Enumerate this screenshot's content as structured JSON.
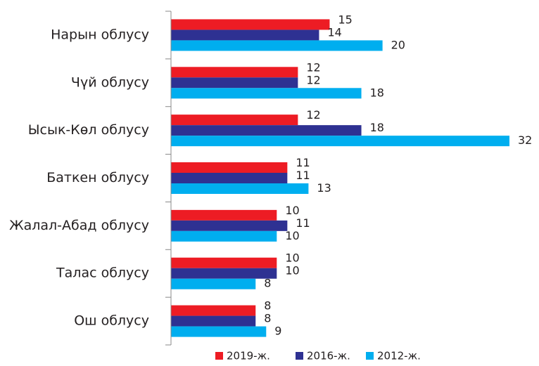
{
  "chart_data": {
    "type": "bar",
    "orientation": "horizontal",
    "categories": [
      "Нарын облусу",
      "Чүй облусу",
      "Ысык-Көл облусу",
      "Баткен облусу",
      "Жалал-Абад облусу",
      "Талас облусу",
      "Ош облусу"
    ],
    "series": [
      {
        "name": "2019-ж.",
        "color": "#ed1c24",
        "values": [
          15,
          12,
          12,
          11,
          10,
          10,
          8
        ]
      },
      {
        "name": "2016-ж.",
        "color": "#2e3192",
        "values": [
          14,
          12,
          18,
          11,
          11,
          10,
          8
        ]
      },
      {
        "name": "2012-ж.",
        "color": "#00aeef",
        "values": [
          20,
          18,
          32,
          13,
          10,
          8,
          9
        ]
      }
    ],
    "legend": "bottom"
  }
}
